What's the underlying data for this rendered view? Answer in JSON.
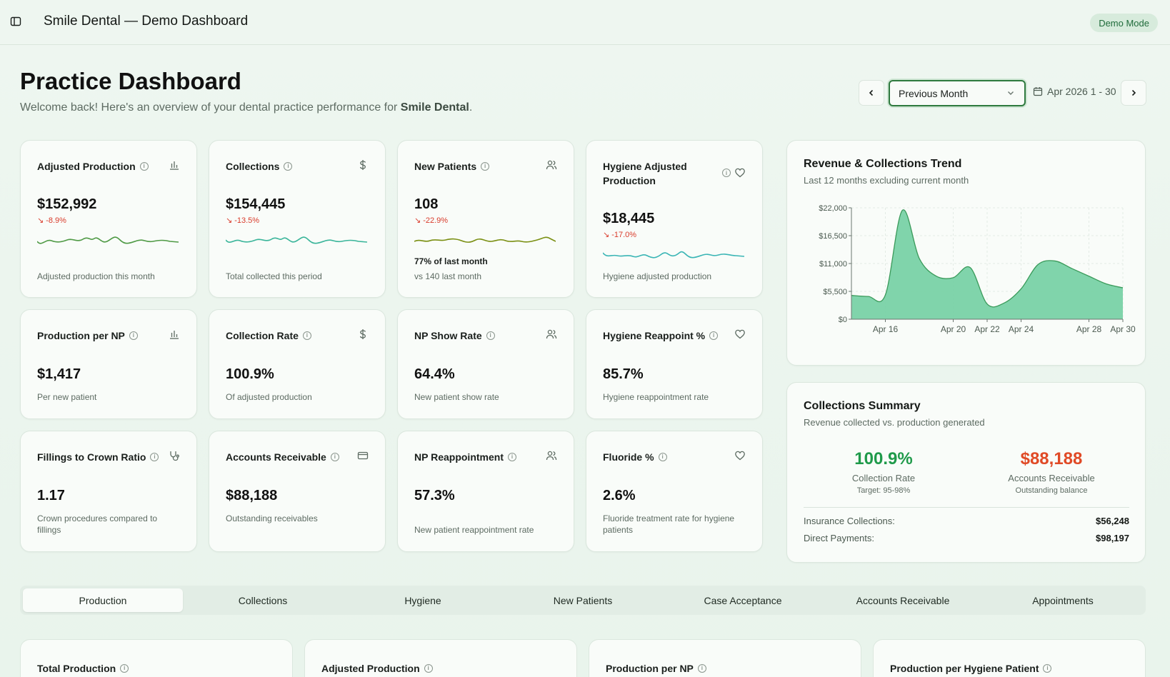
{
  "header": {
    "app_title": "Smile Dental — Demo Dashboard",
    "badge": "Demo Mode"
  },
  "page": {
    "title": "Practice Dashboard",
    "subtitle_prefix": "Welcome back! Here's an overview of your dental practice performance for ",
    "practice_name": "Smile Dental",
    "subtitle_suffix": "."
  },
  "period": {
    "selected": "Previous Month",
    "date_range": "Apr 2026 1 - 30"
  },
  "kpis": [
    {
      "title": "Adjusted Production",
      "value": "$152,992",
      "delta": "-8.9%",
      "desc": "Adjusted production this month",
      "icon": "bar-chart-icon",
      "spark_color": "#4f9a45"
    },
    {
      "title": "Collections",
      "value": "$154,445",
      "delta": "-13.5%",
      "desc": "Total collected this period",
      "icon": "dollar-icon",
      "spark_color": "#3ab59a"
    },
    {
      "title": "New Patients",
      "value": "108",
      "delta": "-22.9%",
      "desc_bold": "77% of last month",
      "desc": "vs 140 last month",
      "icon": "users-icon",
      "spark_color": "#7a8f12"
    },
    {
      "title": "Hygiene Adjusted Production",
      "value": "$18,445",
      "delta": "-17.0%",
      "desc": "Hygiene adjusted production",
      "icon": "heart-icon",
      "spark_color": "#3ab5b5"
    },
    {
      "title": "Production per NP",
      "value": "$1,417",
      "desc": "Per new patient",
      "icon": "bar-chart-icon"
    },
    {
      "title": "Collection Rate",
      "value": "100.9%",
      "desc": "Of adjusted production",
      "icon": "dollar-icon"
    },
    {
      "title": "NP Show Rate",
      "value": "64.4%",
      "desc": "New patient show rate",
      "icon": "users-icon"
    },
    {
      "title": "Hygiene Reappoint %",
      "value": "85.7%",
      "desc": "Hygiene reappointment rate",
      "icon": "heart-icon"
    },
    {
      "title": "Fillings to Crown Ratio",
      "value": "1.17",
      "desc": "Crown procedures compared to fillings",
      "icon": "stethoscope-icon"
    },
    {
      "title": "Accounts Receivable",
      "value": "$88,188",
      "desc": "Outstanding receivables",
      "icon": "credit-card-icon"
    },
    {
      "title": "NP Reappointment",
      "value": "57.3%",
      "desc": "New patient reappointment rate",
      "icon": "users-icon"
    },
    {
      "title": "Fluoride %",
      "value": "2.6%",
      "desc": "Fluoride treatment rate for hygiene patients",
      "icon": "heart-icon"
    }
  ],
  "trend_card": {
    "title": "Revenue & Collections Trend",
    "subtitle": "Last 12 months excluding current month"
  },
  "chart_data": {
    "type": "area",
    "x": [
      "Apr 14",
      "Apr 15",
      "Apr 16",
      "Apr 17",
      "Apr 18",
      "Apr 19",
      "Apr 20",
      "Apr 21",
      "Apr 22",
      "Apr 23",
      "Apr 24",
      "Apr 25",
      "Apr 26",
      "Apr 27",
      "Apr 28",
      "Apr 29",
      "Apr 30"
    ],
    "values": [
      4700,
      4500,
      4800,
      21500,
      12000,
      8500,
      8200,
      10200,
      3000,
      3200,
      6000,
      10800,
      11500,
      10000,
      8500,
      7000,
      6200
    ],
    "xticks": [
      "Apr 16",
      "Apr 20",
      "Apr 22",
      "Apr 24",
      "Apr 28",
      "Apr 30"
    ],
    "yticks": [
      "$0",
      "$5,500",
      "$11,000",
      "$16,500",
      "$22,000"
    ],
    "ylim": [
      0,
      22000
    ],
    "fill_color": "#79d2a6",
    "line_color": "#3a9a5a",
    "grid": true
  },
  "summary": {
    "title": "Collections Summary",
    "subtitle": "Revenue collected vs. production generated",
    "collection_rate": "100.9%",
    "collection_rate_label": "Collection Rate",
    "collection_rate_target": "Target: 95-98%",
    "ar_value": "$88,188",
    "ar_label": "Accounts Receivable",
    "ar_sub": "Outstanding balance",
    "rows": [
      {
        "label": "Insurance Collections:",
        "value": "$56,248"
      },
      {
        "label": "Direct Payments:",
        "value": "$98,197"
      }
    ],
    "rate_color": "#1f9a4a",
    "ar_color": "#e04a26"
  },
  "tabs": [
    "Production",
    "Collections",
    "Hygiene",
    "New Patients",
    "Case Acceptance",
    "Accounts Receivable",
    "Appointments"
  ],
  "bottom_cards": [
    "Total Production",
    "Adjusted Production",
    "Production per NP",
    "Production per Hygiene Patient"
  ]
}
